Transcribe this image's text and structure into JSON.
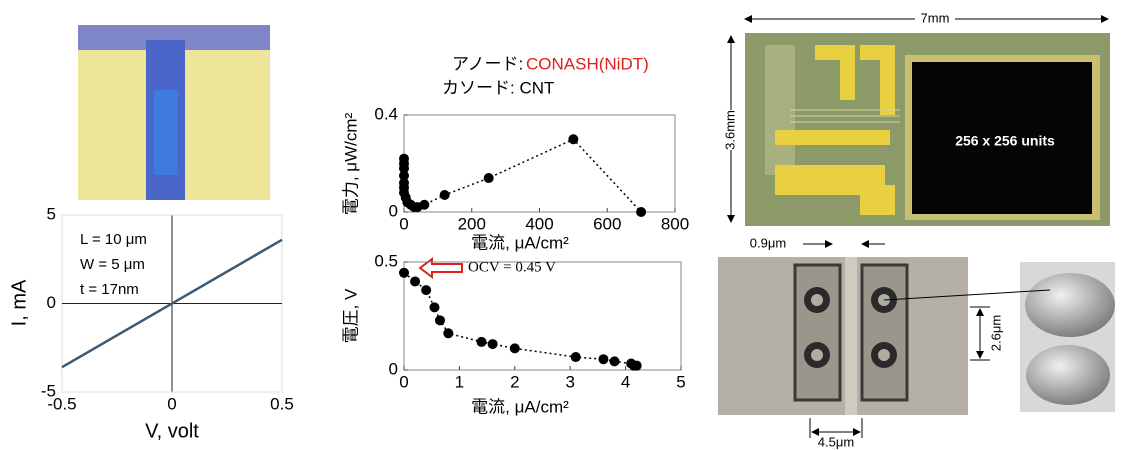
{
  "chart_data": [
    {
      "type": "line",
      "x": [
        -0.5,
        0.5
      ],
      "values": [
        -3.6,
        3.6
      ],
      "color": "#3d5a73",
      "xlim": [
        -0.5,
        0.5
      ],
      "ylim": [
        -5,
        5
      ],
      "xticks": [
        -0.5,
        0,
        0.5
      ],
      "yticks": [
        -5,
        0,
        5
      ],
      "grid": true,
      "xlabel": "V, volt",
      "ylabel": "I, mA",
      "annotations": [
        "L = 10 μm",
        "W = 5 μm",
        "t = 17nm"
      ]
    },
    {
      "type": "scatter",
      "x": [
        0,
        0,
        0,
        0,
        0,
        0,
        0,
        5,
        10,
        20,
        30,
        40,
        60,
        120,
        250,
        500,
        700
      ],
      "values": [
        0.22,
        0.2,
        0.18,
        0.15,
        0.12,
        0.1,
        0.08,
        0.06,
        0.04,
        0.03,
        0.02,
        0.02,
        0.03,
        0.07,
        0.14,
        0.3,
        0.0
      ],
      "color": "#000000",
      "line_style": "dotted",
      "xlim": [
        0,
        800
      ],
      "ylim": [
        0,
        0.4
      ],
      "xticks": [
        0,
        200,
        400,
        600,
        800
      ],
      "yticks": [
        0,
        0.4
      ],
      "grid": false,
      "xlabel": "電流, μA/cm²",
      "ylabel": "電力, μW/cm²",
      "annotations": [
        "アノード:",
        "CONASH(NiDT)",
        "カソード: CNT"
      ],
      "annotation_colors": [
        "#000000",
        "#e0201a",
        "#000000"
      ]
    },
    {
      "type": "scatter",
      "x": [
        0,
        0.2,
        0.4,
        0.55,
        0.65,
        0.8,
        1.4,
        1.6,
        2.0,
        3.1,
        3.6,
        3.8,
        4.1,
        4.15,
        4.2
      ],
      "values": [
        0.45,
        0.41,
        0.37,
        0.29,
        0.23,
        0.17,
        0.13,
        0.12,
        0.1,
        0.06,
        0.05,
        0.04,
        0.03,
        0.02,
        0.02
      ],
      "color": "#000000",
      "line_style": "dotted",
      "xlim": [
        0,
        5
      ],
      "ylim": [
        0,
        0.5
      ],
      "xticks": [
        0,
        1,
        2,
        3,
        4,
        5
      ],
      "yticks": [
        0,
        0.5
      ],
      "grid": false,
      "xlabel": "電流, μA/cm²",
      "ylabel": "電圧, V",
      "annotations": [
        "OCV = 0.45 V"
      ]
    }
  ],
  "photo_labels": {
    "chip_width": "7mm",
    "chip_height": "3.6mm",
    "array": "256 x 256 units",
    "gap": "0.9μm",
    "pitch_v": "2.6μm",
    "pitch_h": "4.5μm"
  }
}
